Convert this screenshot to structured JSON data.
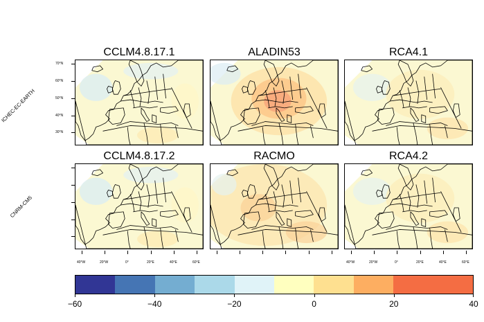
{
  "panels": [
    {
      "title": "CCLM4.8.17.1",
      "field": "cool"
    },
    {
      "title": "ALADIN53",
      "field": "warm_core"
    },
    {
      "title": "RCA4.1",
      "field": "mild"
    },
    {
      "title": "CCLM4.8.17.2",
      "field": "cool"
    },
    {
      "title": "RACMO",
      "field": "warm_broad"
    },
    {
      "title": "RCA4.2",
      "field": "mild"
    }
  ],
  "row_labels": [
    "ICHEC-EC-EARTH",
    "CNRM-CM5"
  ],
  "lat_ticks": [
    "70°N",
    "60°N",
    "50°N",
    "40°N",
    "30°N"
  ],
  "lon_ticks": [
    "40°W",
    "20°W",
    "0°",
    "20°E",
    "40°E",
    "60°E"
  ],
  "colorbar": {
    "min": -60,
    "max": 40,
    "step": 10,
    "tick_labels": [
      "−60",
      "−40",
      "−20",
      "0",
      "20",
      "40"
    ],
    "colors": [
      "#313695",
      "#4575b4",
      "#74add1",
      "#abd9e9",
      "#e0f3f8",
      "#ffffbf",
      "#fee090",
      "#fdae61",
      "#f46d43",
      "#f46d43"
    ]
  }
}
